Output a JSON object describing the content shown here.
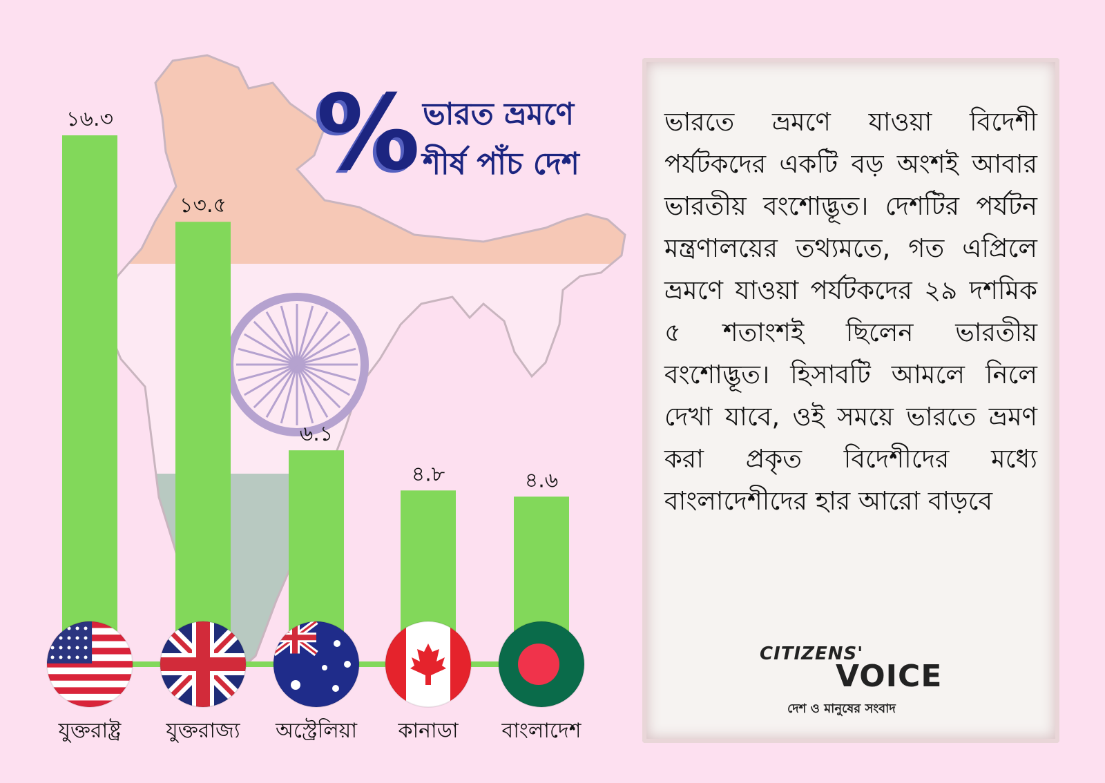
{
  "title": {
    "line1": "ভারত ভ্রমণে",
    "line2": "শীর্ষ পাঁচ দেশ",
    "symbol": "%"
  },
  "chart_data": {
    "type": "bar",
    "categories": [
      "যুক্তরাষ্ট্র",
      "যুক্তরাজ্য",
      "অস্ট্রেলিয়া",
      "কানাডা",
      "বাংলাদেশ"
    ],
    "values": [
      16.3,
      13.5,
      6.1,
      4.8,
      4.6
    ],
    "value_labels": [
      "১৬.৩",
      "১৩.৫",
      "৬.১",
      "৪.৮",
      "৪.৬"
    ],
    "bar_color": "#82d85a",
    "ylim": [
      0,
      16.3
    ]
  },
  "flags": [
    "usa-flag-icon",
    "uk-flag-icon",
    "australia-flag-icon",
    "canada-flag-icon",
    "bangladesh-flag-icon"
  ],
  "colors": {
    "background": "#fde0f0",
    "title": "#1c2580",
    "map_saffron": "#f6c8b6",
    "map_white": "#fde9f3",
    "map_green": "#b8c9c1",
    "chakra": "#b5a2cf"
  },
  "panel": {
    "text": "ভারতে ভ্রমণে যাওয়া বিদেশী পর্যটকদের একটি বড় অংশই আবার ভারতীয় বংশোদ্ভূত। দেশটির পর্যটন মন্ত্রণালয়ের তথ্যমতে, গত এপ্রিলে ভ্রমণে যাওয়া পর্যটকদের ২৯ দশমিক ৫ শতাংশই ছিলেন ভারতীয় বংশোদ্ভূত। হিসাবটি আমলে নিলে দেখা যাবে, ওই সময়ে ভারতে ভ্রমণ করা প্রকৃত বিদেশীদের মধ্যে বাংলাদেশীদের হার আরো বাড়বে"
  },
  "brand": {
    "citizens": "CITIZENS'",
    "voice": "VOICE",
    "tagline": "দেশ ও মানুষের সংবাদ"
  }
}
